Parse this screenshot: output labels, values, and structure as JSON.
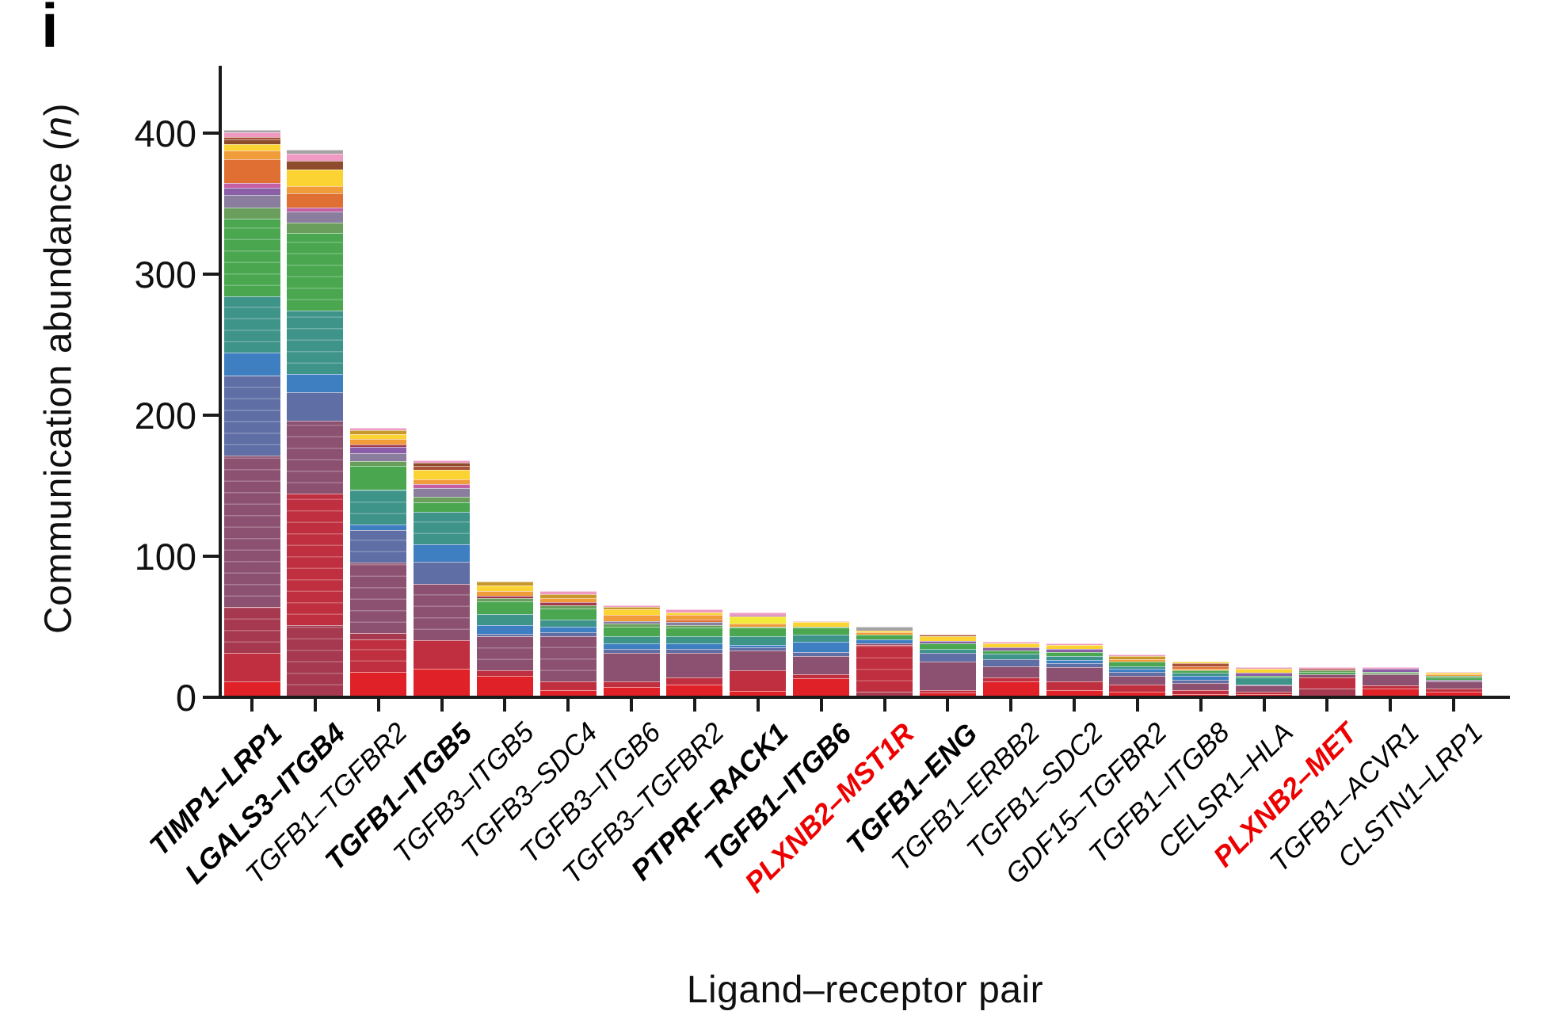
{
  "panel_label": "i",
  "colors": {
    "axis": "#1a1a1a",
    "text": "#101010",
    "label_red": "#ee0000"
  },
  "y_axis": {
    "title_prefix": "Communication abundance (",
    "title_italic": "n",
    "title_suffix": ")"
  },
  "x_axis": {
    "title": "Ligand–receptor pair"
  },
  "chart_data": {
    "type": "bar",
    "stacked": true,
    "xlabel": "Ligand–receptor pair",
    "ylabel": "Communication abundance (n)",
    "ylim": [
      0,
      450
    ],
    "y_ticks": [
      0,
      100,
      200,
      300,
      400
    ],
    "grid": false,
    "legend": "none",
    "palette": {
      "red": "#e02127",
      "crimson": "#c02f3f",
      "wine": "#a63950",
      "mauve": "#8c5170",
      "slate": "#5f6ea4",
      "blue": "#3e7fc1",
      "teal": "#3f9489",
      "green": "#4aa750",
      "sage": "#699e5d",
      "violetgray": "#8a7d9e",
      "purple": "#8a5fa8",
      "magenta": "#c55fa4",
      "orange": "#e06f33",
      "amber": "#f09c3b",
      "yellow": "#fbd434",
      "brightyellow": "#f2ea3b",
      "goldenrod": "#c8982e",
      "brown": "#8d4c2c",
      "sienna": "#a8523a",
      "pink": "#ee9ac3",
      "lightpink": "#f3bdd8",
      "gray": "#a6a2a4"
    },
    "bars": [
      {
        "label": "TIMP1–LRP1",
        "style": "bold",
        "total": 401,
        "segments": [
          [
            "red",
            10
          ],
          [
            "crimson",
            20
          ],
          [
            "wine",
            33
          ],
          [
            "mauve",
            107
          ],
          [
            "slate",
            57
          ],
          [
            "blue",
            16
          ],
          [
            "teal",
            40
          ],
          [
            "green",
            55
          ],
          [
            "sage",
            8
          ],
          [
            "violetgray",
            9
          ],
          [
            "purple",
            5
          ],
          [
            "magenta",
            3
          ],
          [
            "orange",
            17
          ],
          [
            "amber",
            6
          ],
          [
            "yellow",
            5
          ],
          [
            "brown",
            3
          ],
          [
            "sienna",
            2
          ],
          [
            "pink",
            3
          ],
          [
            "gray",
            2
          ]
        ]
      },
      {
        "label": "LGALS3–ITGB4",
        "style": "bold",
        "total": 387,
        "segments": [
          [
            "wine",
            50
          ],
          [
            "crimson",
            93
          ],
          [
            "mauve",
            52
          ],
          [
            "slate",
            20
          ],
          [
            "blue",
            13
          ],
          [
            "teal",
            45
          ],
          [
            "green",
            55
          ],
          [
            "sage",
            7
          ],
          [
            "violetgray",
            8
          ],
          [
            "magenta",
            3
          ],
          [
            "orange",
            10
          ],
          [
            "amber",
            5
          ],
          [
            "yellow",
            12
          ],
          [
            "brown",
            6
          ],
          [
            "pink",
            5
          ],
          [
            "gray",
            3
          ]
        ]
      },
      {
        "label": "TGFB1–TGFBR2",
        "style": "normal",
        "total": 190,
        "segments": [
          [
            "red",
            17
          ],
          [
            "crimson",
            23
          ],
          [
            "wine",
            4
          ],
          [
            "mauve",
            50
          ],
          [
            "slate",
            23
          ],
          [
            "blue",
            4
          ],
          [
            "teal",
            25
          ],
          [
            "green",
            17
          ],
          [
            "sage",
            3
          ],
          [
            "violetgray",
            6
          ],
          [
            "purple",
            4
          ],
          [
            "wine",
            2
          ],
          [
            "amber",
            4
          ],
          [
            "yellow",
            3
          ],
          [
            "goldenrod",
            3
          ],
          [
            "pink",
            2
          ]
        ]
      },
      {
        "label": "TGFB1–ITGB5",
        "style": "bold",
        "total": 167,
        "segments": [
          [
            "red",
            19
          ],
          [
            "crimson",
            20
          ],
          [
            "mauve",
            40
          ],
          [
            "slate",
            16
          ],
          [
            "blue",
            12
          ],
          [
            "teal",
            23
          ],
          [
            "green",
            7
          ],
          [
            "sage",
            4
          ],
          [
            "violetgray",
            6
          ],
          [
            "magenta",
            3
          ],
          [
            "amber",
            3
          ],
          [
            "yellow",
            7
          ],
          [
            "sienna",
            3
          ],
          [
            "brown",
            2
          ],
          [
            "pink",
            2
          ]
        ]
      },
      {
        "label": "TGFB3–ITGB5",
        "style": "normal",
        "total": 81,
        "segments": [
          [
            "red",
            14
          ],
          [
            "crimson",
            4
          ],
          [
            "mauve",
            24
          ],
          [
            "slate",
            2
          ],
          [
            "blue",
            6
          ],
          [
            "teal",
            8
          ],
          [
            "green",
            9
          ],
          [
            "sage",
            2
          ],
          [
            "wine",
            2
          ],
          [
            "amber",
            3
          ],
          [
            "yellow",
            4
          ],
          [
            "goldenrod",
            3
          ]
        ]
      },
      {
        "label": "TGFB3–SDC4",
        "style": "normal",
        "total": 74,
        "segments": [
          [
            "red",
            4
          ],
          [
            "crimson",
            6
          ],
          [
            "mauve",
            32
          ],
          [
            "slate",
            3
          ],
          [
            "blue",
            4
          ],
          [
            "teal",
            5
          ],
          [
            "green",
            8
          ],
          [
            "sage",
            2
          ],
          [
            "wine",
            2
          ],
          [
            "amber",
            3
          ],
          [
            "goldenrod",
            3
          ],
          [
            "pink",
            2
          ]
        ]
      },
      {
        "label": "TGFB3–ITGB6",
        "style": "normal",
        "total": 64,
        "segments": [
          [
            "red",
            6
          ],
          [
            "crimson",
            4
          ],
          [
            "mauve",
            20
          ],
          [
            "slate",
            3
          ],
          [
            "blue",
            4
          ],
          [
            "teal",
            5
          ],
          [
            "green",
            7
          ],
          [
            "sage",
            2
          ],
          [
            "violetgray",
            2
          ],
          [
            "amber",
            4
          ],
          [
            "yellow",
            4
          ],
          [
            "goldenrod",
            2
          ],
          [
            "pink",
            1
          ]
        ]
      },
      {
        "label": "TGFB3–TGFBR2",
        "style": "normal",
        "total": 61,
        "segments": [
          [
            "red",
            8
          ],
          [
            "crimson",
            5
          ],
          [
            "mauve",
            17
          ],
          [
            "slate",
            3
          ],
          [
            "blue",
            4
          ],
          [
            "teal",
            5
          ],
          [
            "green",
            6
          ],
          [
            "sage",
            2
          ],
          [
            "violetgray",
            2
          ],
          [
            "orange",
            2
          ],
          [
            "amber",
            3
          ],
          [
            "yellow",
            2
          ],
          [
            "pink",
            2
          ]
        ]
      },
      {
        "label": "PTPRF–RACK1",
        "style": "bold",
        "total": 59,
        "segments": [
          [
            "red",
            3
          ],
          [
            "crimson",
            15
          ],
          [
            "mauve",
            14
          ],
          [
            "slate",
            2
          ],
          [
            "blue",
            2
          ],
          [
            "teal",
            6
          ],
          [
            "green",
            6
          ],
          [
            "sage",
            1
          ],
          [
            "amber",
            2
          ],
          [
            "brightyellow",
            5
          ],
          [
            "magenta",
            1
          ],
          [
            "pink",
            2
          ]
        ]
      },
      {
        "label": "TGFB1–ITGB6",
        "style": "bold",
        "total": 53,
        "segments": [
          [
            "red",
            12
          ],
          [
            "crimson",
            3
          ],
          [
            "mauve",
            13
          ],
          [
            "slate",
            3
          ],
          [
            "blue",
            7
          ],
          [
            "teal",
            5
          ],
          [
            "green",
            5
          ],
          [
            "sage",
            1
          ],
          [
            "yellow",
            3
          ],
          [
            "pink",
            1
          ]
        ]
      },
      {
        "label": "PLXNB2–MST1R",
        "style": "bold-red",
        "total": 49,
        "segments": [
          [
            "wine",
            3
          ],
          [
            "crimson",
            33
          ],
          [
            "mauve",
            1
          ],
          [
            "blue",
            3
          ],
          [
            "green",
            3
          ],
          [
            "amber",
            2
          ],
          [
            "yellow",
            1
          ],
          [
            "gray",
            3
          ]
        ]
      },
      {
        "label": "TGFB1–ENG",
        "style": "bold",
        "total": 43,
        "segments": [
          [
            "red",
            2
          ],
          [
            "crimson",
            2
          ],
          [
            "mauve",
            20
          ],
          [
            "slate",
            6
          ],
          [
            "teal",
            3
          ],
          [
            "green",
            4
          ],
          [
            "purple",
            2
          ],
          [
            "yellow",
            3
          ],
          [
            "sienna",
            1
          ]
        ]
      },
      {
        "label": "TGFB1–ERBB2",
        "style": "normal",
        "total": 38,
        "segments": [
          [
            "red",
            10
          ],
          [
            "crimson",
            3
          ],
          [
            "mauve",
            8
          ],
          [
            "slate",
            5
          ],
          [
            "teal",
            4
          ],
          [
            "green",
            2
          ],
          [
            "purple",
            2
          ],
          [
            "yellow",
            3
          ],
          [
            "pink",
            1
          ]
        ]
      },
      {
        "label": "TGFB1–SDC2",
        "style": "normal",
        "total": 37,
        "segments": [
          [
            "red",
            4
          ],
          [
            "crimson",
            6
          ],
          [
            "mauve",
            10
          ],
          [
            "slate",
            3
          ],
          [
            "blue",
            2
          ],
          [
            "teal",
            3
          ],
          [
            "green",
            3
          ],
          [
            "purple",
            2
          ],
          [
            "yellow",
            3
          ],
          [
            "pink",
            1
          ]
        ]
      },
      {
        "label": "GDF15–TGFBR2",
        "style": "normal",
        "total": 29,
        "segments": [
          [
            "red",
            3
          ],
          [
            "crimson",
            5
          ],
          [
            "mauve",
            6
          ],
          [
            "slate",
            3
          ],
          [
            "blue",
            2
          ],
          [
            "teal",
            2
          ],
          [
            "green",
            3
          ],
          [
            "amber",
            2
          ],
          [
            "goldenrod",
            2
          ],
          [
            "pink",
            1
          ]
        ]
      },
      {
        "label": "TGFB1–ITGB8",
        "style": "normal",
        "total": 24,
        "segments": [
          [
            "red",
            1
          ],
          [
            "crimson",
            3
          ],
          [
            "mauve",
            5
          ],
          [
            "slate",
            2
          ],
          [
            "blue",
            3
          ],
          [
            "teal",
            2
          ],
          [
            "green",
            2
          ],
          [
            "amber",
            1
          ],
          [
            "orange",
            2
          ],
          [
            "sienna",
            2
          ],
          [
            "yellow",
            1
          ]
        ]
      },
      {
        "label": "CELSR1–HLA",
        "style": "normal",
        "total": 20,
        "segments": [
          [
            "red",
            1
          ],
          [
            "crimson",
            2
          ],
          [
            "mauve",
            4
          ],
          [
            "slate",
            1
          ],
          [
            "teal",
            5
          ],
          [
            "green",
            1
          ],
          [
            "purple",
            2
          ],
          [
            "yellow",
            3
          ],
          [
            "pink",
            1
          ]
        ]
      },
      {
        "label": "PLXNB2–MET",
        "style": "bold-red",
        "total": 20,
        "segments": [
          [
            "wine",
            5
          ],
          [
            "crimson",
            8
          ],
          [
            "mauve",
            2
          ],
          [
            "green",
            2
          ],
          [
            "sage",
            1
          ],
          [
            "sienna",
            1
          ],
          [
            "pink",
            1
          ]
        ]
      },
      {
        "label": "TGFB1–ACVR1",
        "style": "normal",
        "total": 20,
        "segments": [
          [
            "red",
            5
          ],
          [
            "crimson",
            2
          ],
          [
            "mauve",
            8
          ],
          [
            "sage",
            1
          ],
          [
            "green",
            1
          ],
          [
            "purple",
            2
          ],
          [
            "pink",
            1
          ]
        ]
      },
      {
        "label": "CLSTN1–LRP1",
        "style": "normal",
        "total": 17,
        "segments": [
          [
            "red",
            3
          ],
          [
            "crimson",
            2
          ],
          [
            "mauve",
            5
          ],
          [
            "violetgray",
            1
          ],
          [
            "green",
            2
          ],
          [
            "sage",
            1
          ],
          [
            "amber",
            1
          ],
          [
            "yellow",
            1
          ],
          [
            "pink",
            1
          ]
        ]
      }
    ]
  }
}
